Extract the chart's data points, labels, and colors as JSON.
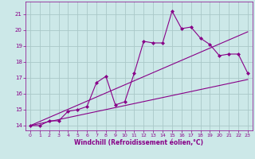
{
  "bg_color": "#cce8e8",
  "grid_color": "#aac8c8",
  "line_color": "#880088",
  "marker_color": "#880088",
  "xlabel": "Windchill (Refroidissement éolien,°C)",
  "xlim": [
    -0.5,
    23.5
  ],
  "ylim": [
    13.7,
    21.8
  ],
  "xticks": [
    0,
    1,
    2,
    3,
    4,
    5,
    6,
    7,
    8,
    9,
    10,
    11,
    12,
    13,
    14,
    15,
    16,
    17,
    18,
    19,
    20,
    21,
    22,
    23
  ],
  "yticks": [
    14,
    15,
    16,
    17,
    18,
    19,
    20,
    21
  ],
  "line1_x": [
    0,
    23
  ],
  "line1_y": [
    14.0,
    16.9
  ],
  "line2_x": [
    0,
    23
  ],
  "line2_y": [
    14.0,
    19.9
  ],
  "line3_x": [
    0,
    1,
    2,
    3,
    4,
    5,
    6,
    7,
    8,
    9,
    10,
    11,
    12,
    13,
    14,
    15,
    16,
    17,
    18,
    19,
    20,
    21,
    22,
    23
  ],
  "line3_y": [
    14.0,
    14.0,
    14.3,
    14.3,
    14.9,
    15.0,
    15.2,
    16.7,
    17.1,
    15.3,
    15.5,
    17.3,
    19.3,
    19.2,
    19.2,
    21.2,
    20.1,
    20.2,
    19.5,
    19.1,
    18.4,
    18.5,
    18.5,
    17.3
  ]
}
